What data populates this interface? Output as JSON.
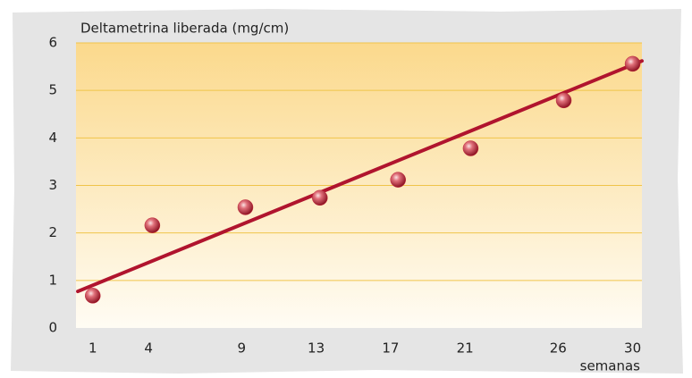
{
  "chart_data": {
    "type": "scatter",
    "y_axis_label": "Deltametrina liberada (mg/cm)",
    "x_axis_label": "semanas",
    "series": [
      {
        "color": "#c42a3c",
        "x": [
          1,
          4.2,
          9.2,
          13.2,
          17.4,
          21.3,
          26.3,
          30
        ],
        "values": [
          0.68,
          2.16,
          2.54,
          2.74,
          3.12,
          3.78,
          4.79,
          5.56
        ]
      }
    ],
    "trend_line": {
      "color": "#b0142e",
      "x": [
        0.2,
        30.5
      ],
      "values": [
        0.77,
        5.62
      ]
    },
    "xlim": [
      0.1,
      30.5
    ],
    "xticks": [
      1,
      4,
      9,
      13,
      17,
      21,
      26,
      30
    ],
    "ylim": [
      0,
      6
    ],
    "yticks": [
      0,
      1,
      2,
      3,
      4,
      5,
      6
    ],
    "grid": true
  }
}
